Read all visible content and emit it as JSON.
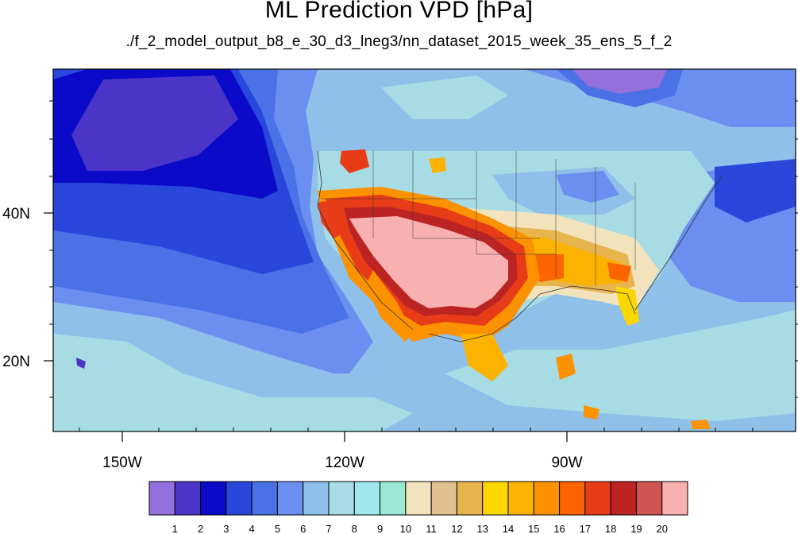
{
  "title": "ML Prediction VPD [hPa]",
  "subtitle": "./f_2_model_output_b8_e_30_d3_lneg3/nn_dataset_2015_week_35_ens_5_f_2",
  "lon_ticks": [
    "150W",
    "120W",
    "90W"
  ],
  "lat_ticks": [
    "40N",
    "20N"
  ],
  "colorbar": {
    "colors": [
      "#9370db",
      "#4b34c8",
      "#0a0ac8",
      "#2a47dc",
      "#4a72e6",
      "#6a8ff0",
      "#8ec0ea",
      "#a8dce4",
      "#a0e8ee",
      "#98e8d4",
      "#f3e3bd",
      "#e0c08e",
      "#e8b44e",
      "#fcd600",
      "#fcb200",
      "#fc9200",
      "#fc6400",
      "#e83c18",
      "#bc2424",
      "#d05454",
      "#f8b0b0"
    ],
    "labels": [
      "1",
      "2",
      "3",
      "4",
      "5",
      "6",
      "7",
      "8",
      "9",
      "10",
      "11",
      "12",
      "13",
      "14",
      "15",
      "16",
      "17",
      "18",
      "19",
      "20"
    ]
  }
}
